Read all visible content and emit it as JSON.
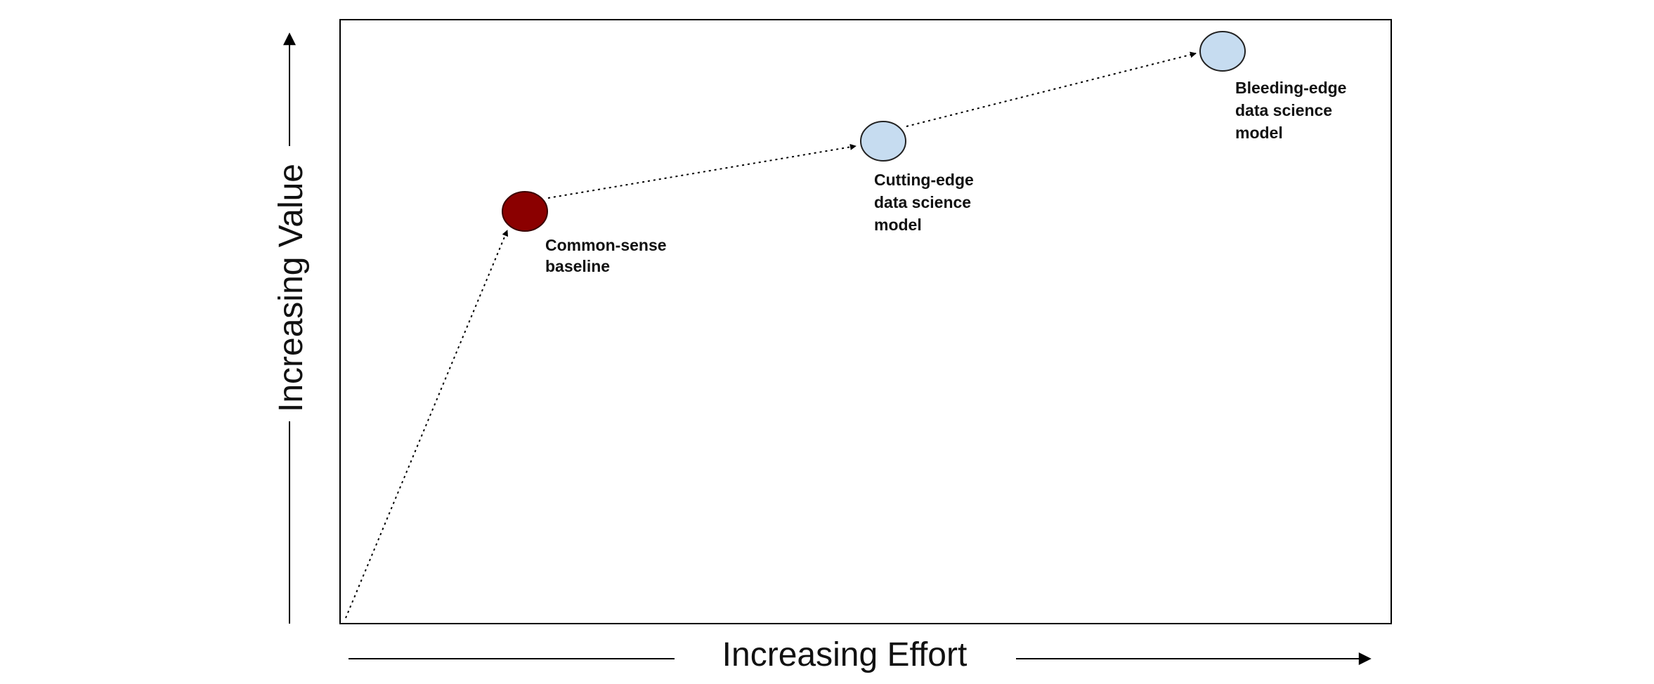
{
  "axes": {
    "x_title": "Increasing Effort",
    "y_title": "Increasing Value"
  },
  "points": [
    {
      "id": "common-sense-baseline",
      "label_lines": [
        "Common-sense",
        "baseline"
      ],
      "fill": "#8b0000",
      "stroke": "#3a0000"
    },
    {
      "id": "cutting-edge-model",
      "label_lines": [
        "Cutting-edge",
        "data science",
        "model"
      ],
      "fill": "#c6dcf0",
      "stroke": "#222222"
    },
    {
      "id": "bleeding-edge-model",
      "label_lines": [
        "Bleeding-edge",
        "data science",
        "model"
      ],
      "fill": "#c6dcf0",
      "stroke": "#222222"
    }
  ]
}
